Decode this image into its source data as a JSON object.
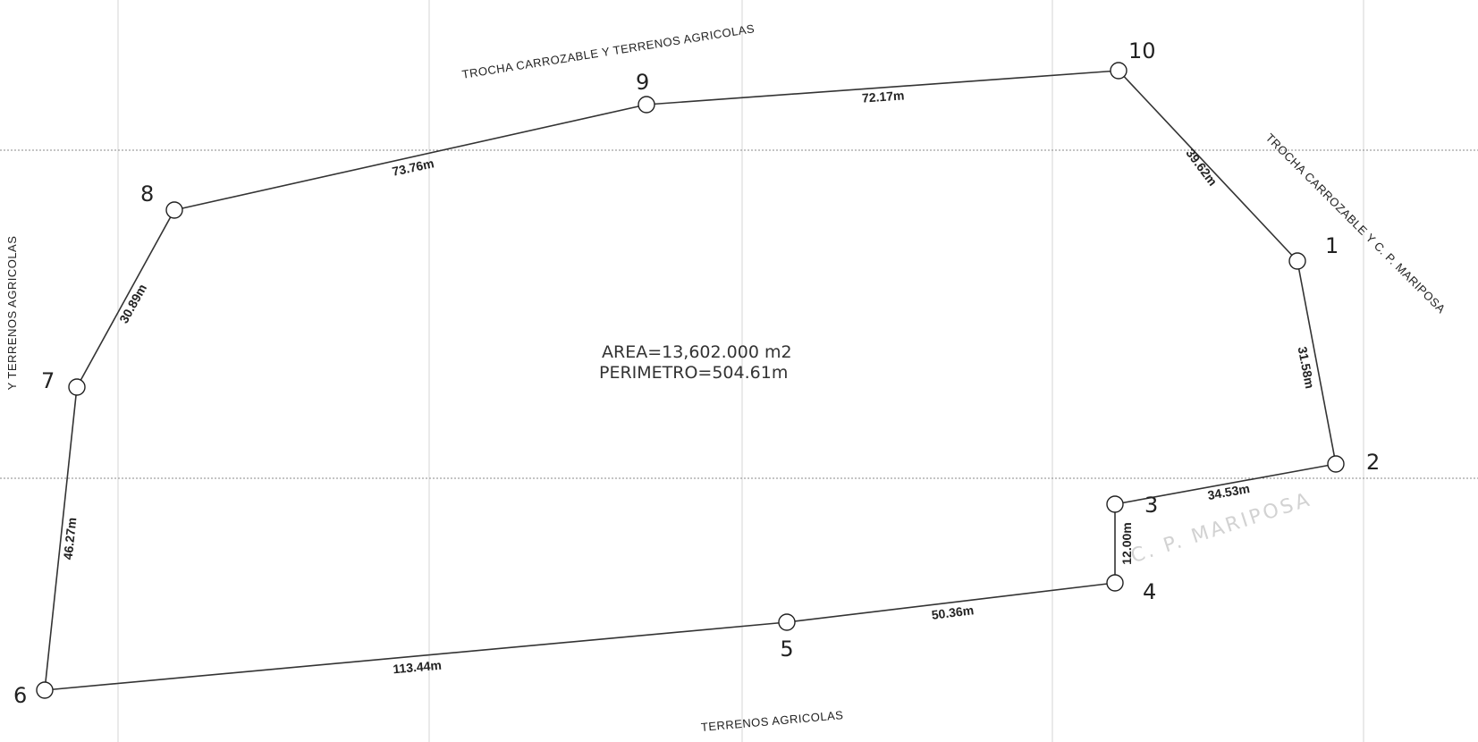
{
  "plan": {
    "summary": {
      "area": "AREA=13,602.000 m2",
      "perimeter": "PERIMETRO=504.61m"
    },
    "vertices": [
      "1",
      "2",
      "3",
      "4",
      "5",
      "6",
      "7",
      "8",
      "9",
      "10"
    ],
    "distances": {
      "d_1_2": "31.58m",
      "d_2_3": "34.53m",
      "d_3_4": "12.00m",
      "d_4_5": "50.36m",
      "d_5_6": "113.44m",
      "d_6_7": "46.27m",
      "d_7_8": "30.89m",
      "d_8_9": "73.76m",
      "d_9_10": "72.17m",
      "d_10_1": "39.62m"
    },
    "boundaries": {
      "north": "TROCHA CARROZABLE Y TERRENOS AGRICOLAS",
      "east": "TROCHA CARROZABLE Y C. P. MARIPOSA",
      "south": "TERRENOS AGRICOLAS",
      "west": "Y TERRENOS AGRICOLAS"
    },
    "stamp": "C. P. MARIPOSA"
  }
}
